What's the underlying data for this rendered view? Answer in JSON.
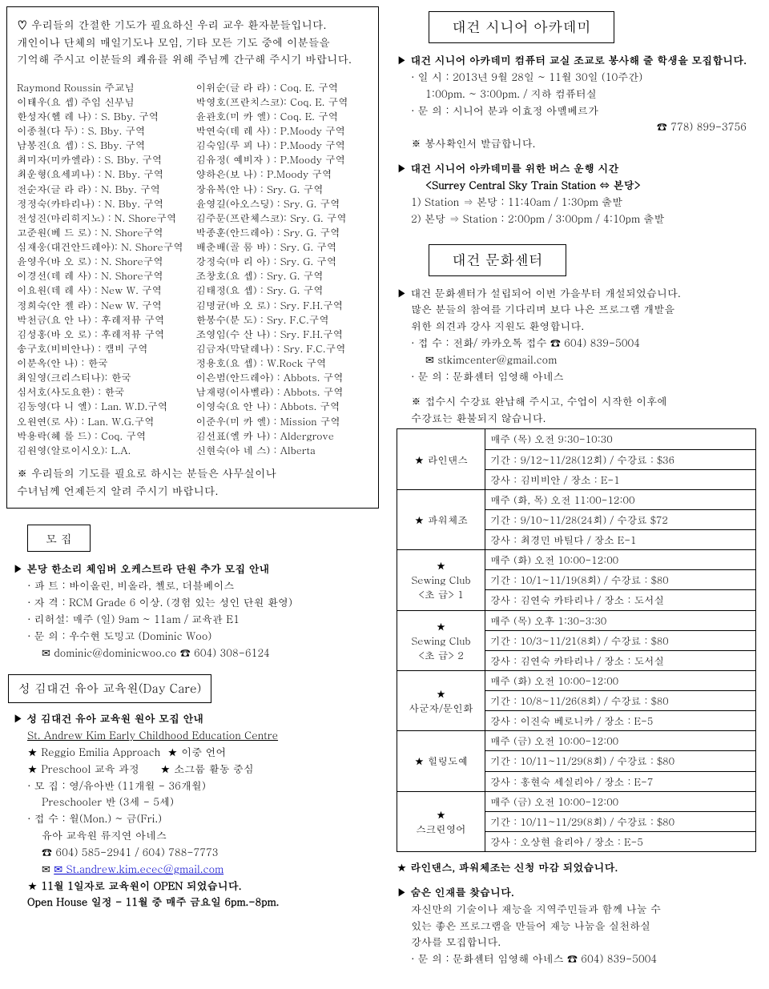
{
  "prayer": {
    "intro_l1": "♡ 우리들의 간절한 기도가 필요하신 우리 교우 환자분들입니다.",
    "intro_l2": "개인이나 단체의 매일기도나 모임, 기타 모든 기도 중에 이분들을",
    "intro_l3": "기억해 주시고 이분들의 쾌유를 위해 주님께 간구해 주시기 바랍니다.",
    "left_list": [
      "Raymond Roussin   주교님",
      "이태우(요   셉)       주임 신부님",
      "한성자(헬 레 나)  : S. Bby. 구역",
      "이종철(다     두)  : S. Bby. 구역",
      "남봉진(요     셉)  : S. Bby. 구역",
      "최미자(미카엘라)  : S. Bby. 구역",
      "최운형(요세피나)  : N. Bby. 구역",
      "전순자(글 라 라)  : N. Bby. 구역",
      "정정숙(카타리나)  : N. Bby. 구역",
      "전성진(마리히지노) : N. Shore구역",
      "고준원(베 드 로)  : N. Shore구역",
      "심재웅(대건안드레아): N. Shore구역",
      "윤영우(바 오 로)  : N. Shore구역",
      "이경선(데 레 사)  : N. Shore구역",
      "이요원(데 레 사)  : New W. 구역",
      "정희숙(안 젤 라)  : New W. 구역",
      "박천금(요 안 나)  : 후레저뷰 구역",
      "김성홍(바 오 로)  : 후레저뷰 구역",
      "송구호(비비안나)  : 캠비 구역",
      "이분옥(안  나)   : 한국",
      "최일영(크리스티나): 한국",
      "심서호(사도요한)  : 한국",
      "김동영(다 니 엘)  : Lan. W.D.구역",
      "오원연(로     사)  : Lan. W.G.구역",
      "박용락(헤 롤 드)  : Coq. 구역",
      "김원영(알로이시오): L.A."
    ],
    "right_list": [
      "이위순(글 라 라)  : Coq. E. 구역",
      "박영호(프란치스코): Coq. E. 구역",
      "윤관호(미 카 엘)  : Coq. E. 구역",
      "박연숙(데 레 사)  : P.Moody 구역",
      "김숙임(루 피 나)  : P.Moody 구역",
      "김유정( 예비자 )  : P.Moody 구역",
      "양하은(보     나)  : P.Moody 구역",
      "장유복(안     나)  : Sry. G. 구역",
      "윤영길(아오스딩)  : Sry. G. 구역",
      "김주문(프란체스코): Sry. G. 구역",
      "박종훈(안드레아)  : Sry. G. 구역",
      "배춘배(골 룸 바)  : Sry. G. 구역",
      "강정숙(마 리 아)  : Sry. G. 구역",
      "조창호(요     셉)  : Sry. G. 구역",
      "김태정(요     셉)  : Sry. G. 구역",
      "김명균(바 오 로)  : Sry. F.H.구역",
      "한봉수(분     도)  : Sry. F.C.구역",
      "조영임(수 산 나)  : Sry. F.H.구역",
      "김금자(막달레나)  : Sry. F.C.구역",
      "정용호(요     셉)  : W.Rock 구역",
      "이은범(안드레아)  : Abbots. 구역",
      "남재령(이사벨라)  : Abbots. 구역",
      "이영숙(요 안 나)  : Abbots. 구역",
      "이준우(미 카 엘)  : Mission 구역",
      "김선표(엘 카 나)  : Aldergrove",
      "신현숙(아 네 스)  : Alberta"
    ],
    "footnote_l1": "※ 우리들의 기도를 필요로 하시는 분들은 사무실이나",
    "footnote_l2": "    수녀님께 언제든지 알려 주시기  바랍니다."
  },
  "recruit": {
    "title": "모     집",
    "l1": "본당 한소리 체임버 오케스트라 단원 추가 모집 안내",
    "l2": "파 트 : 바이올린, 비올라, 첼로, 더블베이스",
    "l3": "자 격 : RCM Grade 6 이상. (경험 있는 성인 단원 환영)",
    "l4": "리허설: 매주 (일) 9am ~ 11am / 교육관 E1",
    "l5": "문 의 : 우수현 도밍고 (Dominic Woo)",
    "l6": "✉ dominic@dominicwoo.co   ☎ 604) 308-6124"
  },
  "daycare": {
    "title": "성 김대건 유아 교육원(Day Care)",
    "p1": "성 김대건 유아 교육원 원아 모집 안내",
    "p2": "St. Andrew Kim Early Childhood Education Centre",
    "s1": "Reggio Emilia Approach",
    "s2": "이중 언어",
    "s3": "Preschool 교육 과정",
    "s4": "소그룹 활동 중심",
    "m1": "모  집 : 영/유아반 (11개월 - 36개월)",
    "m2": "Preschooler 반 (3세 - 5세)",
    "m3": "접  수 : 월(Mon.) ~ 금(Fri.)",
    "m4": "유아 교육원 류지연 아네스",
    "m5": "☎ 604) 585-2941 / 604) 788-7773",
    "m6": "✉ St.andrew.kim.ecec@gmail.com",
    "m7": "11월 1일자로 교육원이 OPEN 되었습니다.",
    "m8": "Open House 일정 - 11월 중  매주 금요일 6pm.-8pm."
  },
  "senior": {
    "title": "대건 시니어 아카데미",
    "p1": "대건 시니어 아카데미 컴퓨터 교실 조교로 봉사해 줄 학생을 모집합니다.",
    "d1": "일 시 : 2013년 9월 28일 ~ 11월 30일 (10주간)",
    "d2": "1:00pm. ~ 3:00pm. / 지하 컴퓨터실",
    "d3": "문 의 : 시니어 분과 이효정 아멜베르가",
    "d4": "☎ 778) 899-3756",
    "d5": "※ 봉사확인서 발급합니다.",
    "b1": "대건 시니어 아카데미를 위한 버스 운행 시간",
    "b2": "<Surrey Central Sky Train Station ⇔ 본당>",
    "b3": "1) Station ⇒ 본당 : 11:40am / 1:30pm 출발",
    "b4": "2) 본당 ⇒ Station : 2:00pm / 3:00pm / 4:10pm 출발"
  },
  "culture": {
    "title": "대건 문화센터",
    "p1": "대건 문화센터가 설립되어 이번 가을부터 개설되었습니다.",
    "p2": "많은 분들의 참여를 기다리며 보다 나은 프로그램 개발을",
    "p3": "위한 의견과 강사 지원도 환영합니다.",
    "c1": "접 수 : 전화/ 카카오톡 접수  ☎ 604) 839-5004",
    "c2": "✉ stkimcenter@gmail.com",
    "c3": "문 의 : 문화센터 임영해 아네스",
    "c4": "※ 접수시 수강료 완납해 주시고, 수업이 시작한 이후에",
    "c5": "    수강료는 환불되지 않습니다.",
    "rows": [
      {
        "name": "★ 라인댄스",
        "l1": "매주 (목) 오전 9:30-10:30",
        "l2": "기간 : 9/12~11/28(12회) / 수강료 : $36",
        "l3": "강사 : 김비비안 / 장소 : E-1"
      },
      {
        "name": "★ 파워체조",
        "l1": "매주 (화, 목) 오전 11:00-12:00",
        "l2": "기간 : 9/10~11/28(24회) / 수강료 $72",
        "l3": "강사 : 최경민 바틸다    / 장소 E-1"
      },
      {
        "name": "★\nSewing Club\n<초 급> 1",
        "l1": "매주 (화) 오전 10:00-12:00",
        "l2": "기간 : 10/1~11/19(8회) / 수강료 : $80",
        "l3": "강사 : 김연숙 카타리나  / 장소 : 도서실"
      },
      {
        "name": "★\nSewing Club\n<초 급> 2",
        "l1": "매주 (목) 오후 1:30-3:30",
        "l2": "기간 : 10/3~11/21(8회) / 수강료 : $80",
        "l3": "강사 : 김연숙 카타리나  / 장소 : 도서실"
      },
      {
        "name": "★\n사군자/문인화",
        "l1": "매주 (화) 오전 10:00-12:00",
        "l2": "기간 : 10/8~11/26(8회) / 수강료 : $80",
        "l3": "강사 : 이진숙 베로니카 / 장소 : E-5"
      },
      {
        "name": "★ 힐링도예",
        "l1": "매주 (금) 오전 10:00-12:00",
        "l2": "기간 : 10/11~11/29(8회) / 수강료 : $80",
        "l3": "강사 : 홍현숙 세실리아 / 장소 : E-7"
      },
      {
        "name": "★\n스크린영어",
        "l1": "매주 (금) 오전 10:00-12:00",
        "l2": "기간 : 10/11~11/29(8회) / 수강료 : $80",
        "l3": "강사 : 오상현 율리아  / 장소 : E-5"
      }
    ],
    "f1": "라인댄스, 파워체조는 신청 마감 되었습니다.",
    "t1": "숨은 인재를 찾습니다.",
    "t2": "자신만의 기술이나 재능을 지역주민들과 함께 나눌 수",
    "t3": "있는 좋은 프로그램을 만들어 재능 나눔을 실천하실",
    "t4": "강사를 모집합니다.",
    "t5": "문 의 : 문화센터 임영해 아네스 ☎ 604) 839-5004"
  }
}
